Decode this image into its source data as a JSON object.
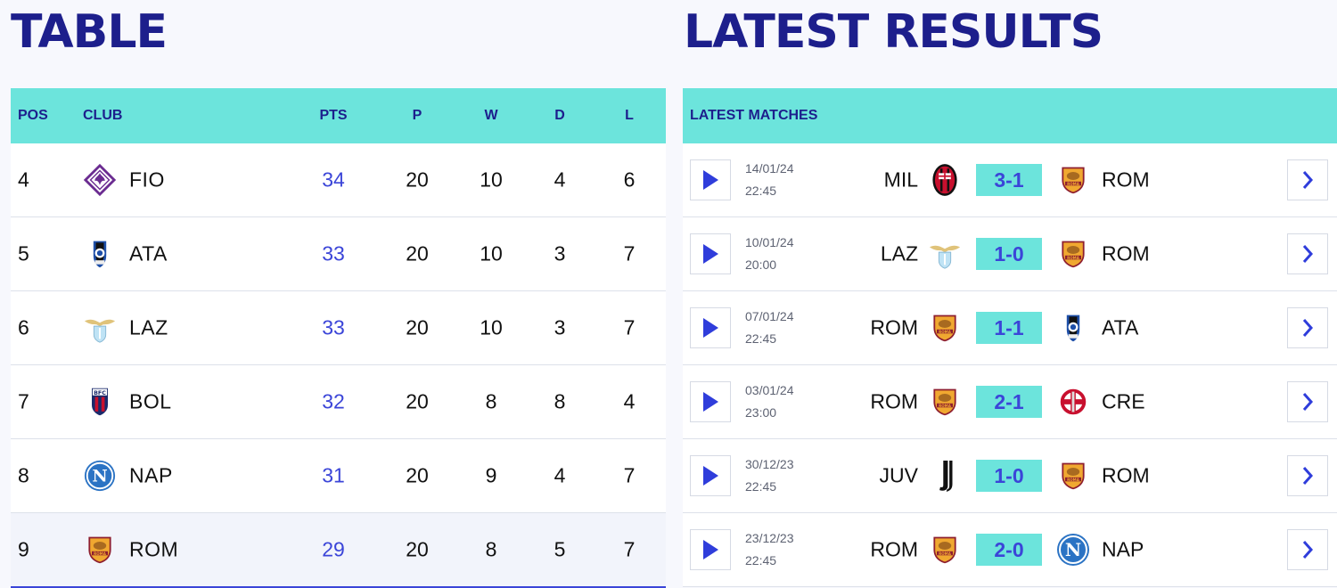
{
  "titles": {
    "table": "TABLE",
    "results": "LATEST RESULTS"
  },
  "colors": {
    "accent": "#6ce4dc",
    "brand": "#1d1f8c",
    "link": "#3b45d8"
  },
  "standings": {
    "headers": {
      "pos": "POS",
      "club": "CLUB",
      "pts": "PTS",
      "p": "P",
      "w": "W",
      "d": "D",
      "l": "L"
    },
    "rows": [
      {
        "pos": "4",
        "club": "FIO",
        "logo": "fiorentina-crest-icon",
        "pts": "34",
        "p": "20",
        "w": "10",
        "d": "4",
        "l": "6"
      },
      {
        "pos": "5",
        "club": "ATA",
        "logo": "atalanta-crest-icon",
        "pts": "33",
        "p": "20",
        "w": "10",
        "d": "3",
        "l": "7"
      },
      {
        "pos": "6",
        "club": "LAZ",
        "logo": "lazio-eagle-icon",
        "pts": "33",
        "p": "20",
        "w": "10",
        "d": "3",
        "l": "7"
      },
      {
        "pos": "7",
        "club": "BOL",
        "logo": "bologna-crest-icon",
        "pts": "32",
        "p": "20",
        "w": "8",
        "d": "8",
        "l": "4"
      },
      {
        "pos": "8",
        "club": "NAP",
        "logo": "napoli-crest-icon",
        "pts": "31",
        "p": "20",
        "w": "9",
        "d": "4",
        "l": "7"
      },
      {
        "pos": "9",
        "club": "ROM",
        "logo": "roma-crest-icon",
        "pts": "29",
        "p": "20",
        "w": "8",
        "d": "5",
        "l": "7"
      }
    ]
  },
  "results": {
    "header": "LATEST MATCHES",
    "matches": [
      {
        "date": "14/01/24",
        "time": "22:45",
        "home": "MIL",
        "home_logo": "milan-crest-icon",
        "score": "3-1",
        "away": "ROM",
        "away_logo": "roma-crest-icon"
      },
      {
        "date": "10/01/24",
        "time": "20:00",
        "home": "LAZ",
        "home_logo": "lazio-eagle-icon",
        "score": "1-0",
        "away": "ROM",
        "away_logo": "roma-crest-icon"
      },
      {
        "date": "07/01/24",
        "time": "22:45",
        "home": "ROM",
        "home_logo": "roma-crest-icon",
        "score": "1-1",
        "away": "ATA",
        "away_logo": "atalanta-crest-icon"
      },
      {
        "date": "03/01/24",
        "time": "23:00",
        "home": "ROM",
        "home_logo": "roma-crest-icon",
        "score": "2-1",
        "away": "CRE",
        "away_logo": "cremonese-crest-icon"
      },
      {
        "date": "30/12/23",
        "time": "22:45",
        "home": "JUV",
        "home_logo": "juventus-crest-icon",
        "score": "1-0",
        "away": "ROM",
        "away_logo": "roma-crest-icon"
      },
      {
        "date": "23/12/23",
        "time": "22:45",
        "home": "ROM",
        "home_logo": "roma-crest-icon",
        "score": "2-0",
        "away": "NAP",
        "away_logo": "napoli-crest-icon"
      }
    ]
  }
}
